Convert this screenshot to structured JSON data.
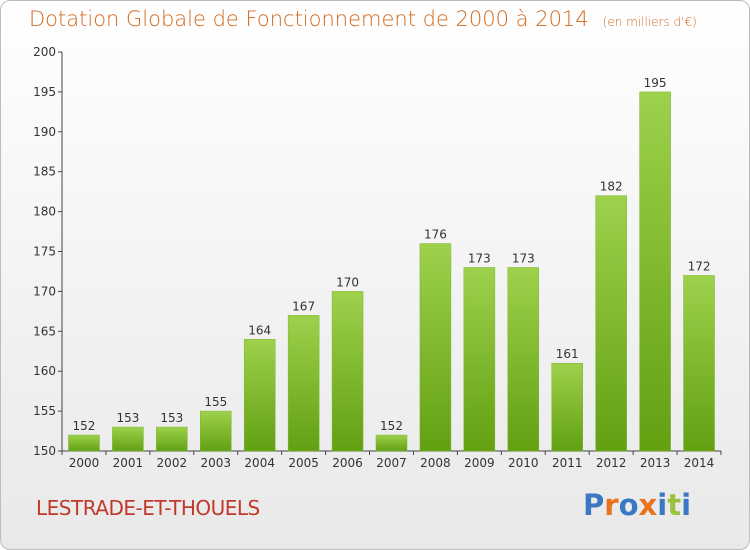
{
  "header": {
    "title": "Dotation Globale de Fonctionnement de 2000 à 2014",
    "unit": "(en milliers d'€)"
  },
  "footer": {
    "commune": "LESTRADE-ET-THOUELS",
    "logo": "Proxiti"
  },
  "colors": {
    "bar_light": "#9ed14c",
    "bar_dark": "#62a012",
    "title": "#d2691e",
    "commune": "#c0392b",
    "logo_letters": [
      "#3b78c2",
      "#e8731c",
      "#3b78c2",
      "#e8731c",
      "#3b78c2",
      "#9ac23c",
      "#3b78c2"
    ]
  },
  "chart_data": {
    "type": "bar",
    "title": "Dotation Globale de Fonctionnement de 2000 à 2014",
    "subtitle": "(en milliers d'€)",
    "xlabel": "",
    "ylabel": "",
    "categories": [
      "2000",
      "2001",
      "2002",
      "2003",
      "2004",
      "2005",
      "2006",
      "2007",
      "2008",
      "2009",
      "2010",
      "2011",
      "2012",
      "2013",
      "2014"
    ],
    "values": [
      152,
      153,
      153,
      155,
      164,
      167,
      170,
      152,
      176,
      173,
      173,
      161,
      182,
      195,
      172
    ],
    "ylim": [
      150,
      200
    ],
    "yticks": [
      150,
      155,
      160,
      165,
      170,
      175,
      180,
      185,
      190,
      195,
      200
    ],
    "grid": false,
    "data_labels": true
  }
}
